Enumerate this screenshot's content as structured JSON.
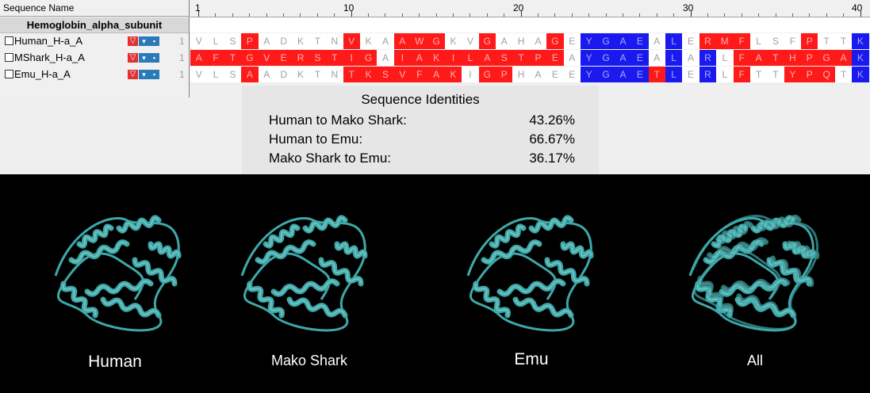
{
  "alignment": {
    "header_name": "Sequence Name",
    "ruler_labels": [
      "1",
      "10",
      "20",
      "30",
      "40"
    ],
    "group_name": "Hemoglobin_alpha_subunit",
    "sequences": [
      {
        "name": "Human_H-a_A",
        "start": "1",
        "residues": [
          "V",
          "L",
          "S",
          "P",
          "A",
          "D",
          "K",
          "T",
          "N",
          "V",
          "K",
          "A",
          "A",
          "W",
          "G",
          "K",
          "V",
          "G",
          "A",
          "H",
          "A",
          "G",
          "E",
          "Y",
          "G",
          "A",
          "E",
          "A",
          "L",
          "E",
          "R",
          "M",
          "F",
          "L",
          "S",
          "F",
          "P",
          "T",
          "T",
          "K"
        ],
        "colors": [
          "w",
          "w",
          "w",
          "r",
          "w",
          "w",
          "w",
          "w",
          "w",
          "r",
          "w",
          "w",
          "r",
          "r",
          "r",
          "w",
          "w",
          "r",
          "w",
          "w",
          "w",
          "r",
          "w",
          "bl",
          "bl",
          "bl",
          "bl",
          "w",
          "bl",
          "w",
          "r",
          "r",
          "r",
          "w",
          "w",
          "w",
          "r",
          "w",
          "w",
          "bl"
        ]
      },
      {
        "name": "MShark_H-a_A",
        "start": "1",
        "residues": [
          "A",
          "F",
          "T",
          "G",
          "V",
          "E",
          "R",
          "S",
          "T",
          "I",
          "G",
          "A",
          "I",
          "A",
          "K",
          "I",
          "L",
          "A",
          "S",
          "T",
          "P",
          "E",
          "A",
          "Y",
          "G",
          "A",
          "E",
          "A",
          "L",
          "A",
          "R",
          "L",
          "F",
          "A",
          "T",
          "H",
          "P",
          "G",
          "A",
          "K"
        ],
        "colors": [
          "r",
          "r",
          "r",
          "r",
          "r",
          "r",
          "r",
          "r",
          "r",
          "r",
          "r",
          "w",
          "r",
          "r",
          "r",
          "r",
          "r",
          "r",
          "r",
          "r",
          "r",
          "r",
          "w",
          "bl",
          "bl",
          "bl",
          "bl",
          "w",
          "bl",
          "w",
          "bl",
          "w",
          "r",
          "r",
          "r",
          "r",
          "r",
          "r",
          "r",
          "bl"
        ]
      },
      {
        "name": "Emu_H-a_A",
        "start": "1",
        "residues": [
          "V",
          "L",
          "S",
          "A",
          "A",
          "D",
          "K",
          "T",
          "N",
          "T",
          "K",
          "S",
          "V",
          "F",
          "A",
          "K",
          "I",
          "G",
          "P",
          "H",
          "A",
          "E",
          "E",
          "Y",
          "G",
          "A",
          "E",
          "T",
          "L",
          "E",
          "R",
          "L",
          "F",
          "T",
          "T",
          "Y",
          "P",
          "Q",
          "T",
          "K"
        ],
        "colors": [
          "w",
          "w",
          "w",
          "r",
          "w",
          "w",
          "w",
          "w",
          "w",
          "r",
          "r",
          "r",
          "r",
          "r",
          "r",
          "r",
          "w",
          "r",
          "r",
          "w",
          "w",
          "w",
          "w",
          "bl",
          "bl",
          "bl",
          "bl",
          "r",
          "bl",
          "w",
          "bl",
          "w",
          "r",
          "w",
          "w",
          "r",
          "r",
          "r",
          "w",
          "bl"
        ]
      }
    ]
  },
  "identities": {
    "title": "Sequence Identities",
    "rows": [
      {
        "label": "Human to Mako Shark:",
        "value": "43.26%"
      },
      {
        "label": "Human to Emu:",
        "value": "66.67%"
      },
      {
        "label": "Mako Shark to Emu:",
        "value": "36.17%"
      }
    ]
  },
  "structures": {
    "captions": [
      "Human",
      "Mako Shark",
      "Emu",
      "All"
    ],
    "ribbon_color": "#3fa7a8"
  }
}
